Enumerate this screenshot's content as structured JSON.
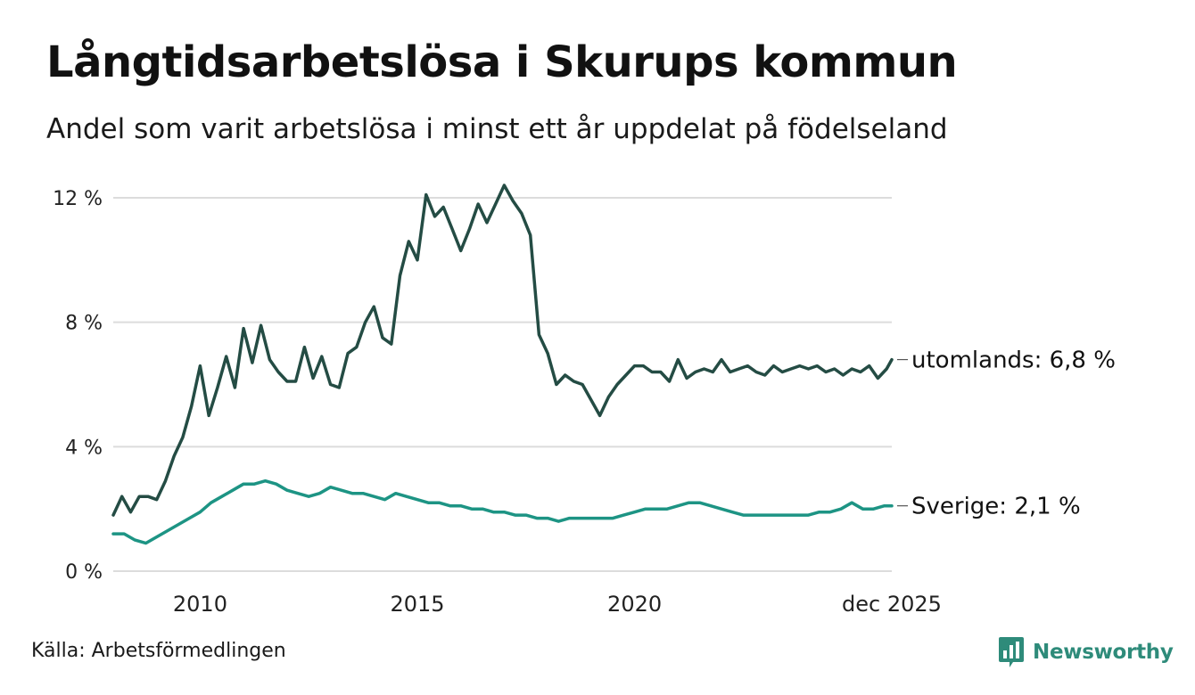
{
  "title": "Långtidsarbetslösa i Skurups kommun",
  "subtitle": "Andel som varit arbetslösa i minst ett år uppdelat på födelseland",
  "source": "Källa: Arbetsförmedlingen",
  "brand": {
    "name": "Newsworthy",
    "color": "#2e8b7a",
    "icon": "bar-chart-bubble-icon"
  },
  "chart_data": {
    "type": "line",
    "title": "Långtidsarbetslösa i Skurups kommun",
    "xlabel": "",
    "ylabel": "",
    "x_range": [
      2008.0,
      2025.92
    ],
    "ylim": [
      0,
      12
    ],
    "y_ticks": [
      0,
      4,
      8,
      12
    ],
    "y_tick_labels": [
      "0 %",
      "4 %",
      "8 %",
      "12 %"
    ],
    "x_ticks": [
      2010,
      2015,
      2020,
      2025.92
    ],
    "x_tick_labels": [
      "2010",
      "2015",
      "2020",
      "dec 2025"
    ],
    "grid": true,
    "series": [
      {
        "name": "utomlands",
        "color": "#244c44",
        "end_label": "utomlands: 6,8 %",
        "x": [
          2008.0,
          2008.2,
          2008.4,
          2008.6,
          2008.8,
          2009.0,
          2009.2,
          2009.4,
          2009.6,
          2009.8,
          2010.0,
          2010.2,
          2010.4,
          2010.6,
          2010.8,
          2011.0,
          2011.2,
          2011.4,
          2011.6,
          2011.8,
          2012.0,
          2012.2,
          2012.4,
          2012.6,
          2012.8,
          2013.0,
          2013.2,
          2013.4,
          2013.6,
          2013.8,
          2014.0,
          2014.2,
          2014.4,
          2014.6,
          2014.8,
          2015.0,
          2015.2,
          2015.4,
          2015.6,
          2015.8,
          2016.0,
          2016.2,
          2016.4,
          2016.6,
          2016.8,
          2017.0,
          2017.2,
          2017.4,
          2017.6,
          2017.8,
          2018.0,
          2018.2,
          2018.4,
          2018.6,
          2018.8,
          2019.0,
          2019.2,
          2019.4,
          2019.6,
          2019.8,
          2020.0,
          2020.2,
          2020.4,
          2020.6,
          2020.8,
          2021.0,
          2021.2,
          2021.4,
          2021.6,
          2021.8,
          2022.0,
          2022.2,
          2022.4,
          2022.6,
          2022.8,
          2023.0,
          2023.2,
          2023.4,
          2023.6,
          2023.8,
          2024.0,
          2024.2,
          2024.4,
          2024.6,
          2024.8,
          2025.0,
          2025.2,
          2025.4,
          2025.6,
          2025.8,
          2025.92
        ],
        "values": [
          1.8,
          2.4,
          1.9,
          2.4,
          2.4,
          2.3,
          2.9,
          3.7,
          4.3,
          5.3,
          6.6,
          5.0,
          5.9,
          6.9,
          5.9,
          7.8,
          6.7,
          7.9,
          6.8,
          6.4,
          6.1,
          6.1,
          7.2,
          6.2,
          6.9,
          6.0,
          5.9,
          7.0,
          7.2,
          8.0,
          8.5,
          7.5,
          7.3,
          9.5,
          10.6,
          10.0,
          12.1,
          11.4,
          11.7,
          11.0,
          10.3,
          11.0,
          11.8,
          11.2,
          11.8,
          12.4,
          11.9,
          11.5,
          10.8,
          7.6,
          7.0,
          6.0,
          6.3,
          6.1,
          6.0,
          5.5,
          5.0,
          5.6,
          6.0,
          6.3,
          6.6,
          6.6,
          6.4,
          6.4,
          6.1,
          6.8,
          6.2,
          6.4,
          6.5,
          6.4,
          6.8,
          6.4,
          6.5,
          6.6,
          6.4,
          6.3,
          6.6,
          6.4,
          6.5,
          6.6,
          6.5,
          6.6,
          6.4,
          6.5,
          6.3,
          6.5,
          6.4,
          6.6,
          6.2,
          6.5,
          6.8
        ]
      },
      {
        "name": "Sverige",
        "color": "#1d9484",
        "end_label": "Sverige: 2,1 %",
        "x": [
          2008.0,
          2008.25,
          2008.5,
          2008.75,
          2009.0,
          2009.25,
          2009.5,
          2009.75,
          2010.0,
          2010.25,
          2010.5,
          2010.75,
          2011.0,
          2011.25,
          2011.5,
          2011.75,
          2012.0,
          2012.25,
          2012.5,
          2012.75,
          2013.0,
          2013.25,
          2013.5,
          2013.75,
          2014.0,
          2014.25,
          2014.5,
          2014.75,
          2015.0,
          2015.25,
          2015.5,
          2015.75,
          2016.0,
          2016.25,
          2016.5,
          2016.75,
          2017.0,
          2017.25,
          2017.5,
          2017.75,
          2018.0,
          2018.25,
          2018.5,
          2018.75,
          2019.0,
          2019.25,
          2019.5,
          2019.75,
          2020.0,
          2020.25,
          2020.5,
          2020.75,
          2021.0,
          2021.25,
          2021.5,
          2021.75,
          2022.0,
          2022.25,
          2022.5,
          2022.75,
          2023.0,
          2023.25,
          2023.5,
          2023.75,
          2024.0,
          2024.25,
          2024.5,
          2024.75,
          2025.0,
          2025.25,
          2025.5,
          2025.75,
          2025.92
        ],
        "values": [
          1.2,
          1.2,
          1.0,
          0.9,
          1.1,
          1.3,
          1.5,
          1.7,
          1.9,
          2.2,
          2.4,
          2.6,
          2.8,
          2.8,
          2.9,
          2.8,
          2.6,
          2.5,
          2.4,
          2.5,
          2.7,
          2.6,
          2.5,
          2.5,
          2.4,
          2.3,
          2.5,
          2.4,
          2.3,
          2.2,
          2.2,
          2.1,
          2.1,
          2.0,
          2.0,
          1.9,
          1.9,
          1.8,
          1.8,
          1.7,
          1.7,
          1.6,
          1.7,
          1.7,
          1.7,
          1.7,
          1.7,
          1.8,
          1.9,
          2.0,
          2.0,
          2.0,
          2.1,
          2.2,
          2.2,
          2.1,
          2.0,
          1.9,
          1.8,
          1.8,
          1.8,
          1.8,
          1.8,
          1.8,
          1.8,
          1.9,
          1.9,
          2.0,
          2.2,
          2.0,
          2.0,
          2.1,
          2.1
        ]
      }
    ]
  }
}
